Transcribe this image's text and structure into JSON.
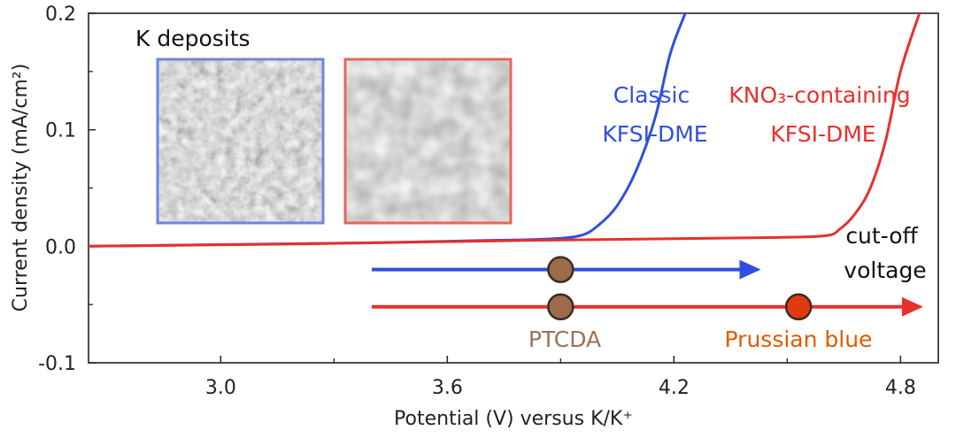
{
  "chart_data": {
    "type": "line",
    "title": "",
    "xlabel": "Potential (V) versus K/K⁺",
    "ylabel": "Current density (mA/cm²)",
    "xlim": [
      2.65,
      4.9
    ],
    "ylim": [
      -0.1,
      0.2
    ],
    "x_ticks": [
      "3.0",
      "3.6",
      "4.2",
      "4.8"
    ],
    "y_ticks": [
      "-0.1",
      "0.0",
      "0.1",
      "0.2"
    ],
    "grid": false,
    "series": [
      {
        "name": "Classic KFSI-DME",
        "label_lines": [
          "Classic",
          "KFSI-DME"
        ],
        "color": "#2f4fe0",
        "x": [
          2.65,
          3.0,
          3.4,
          3.7,
          3.85,
          3.95,
          4.0,
          4.05,
          4.1,
          4.15,
          4.19,
          4.23
        ],
        "y": [
          0.0,
          0.0015,
          0.003,
          0.005,
          0.006,
          0.009,
          0.018,
          0.035,
          0.065,
          0.11,
          0.165,
          0.2
        ]
      },
      {
        "name": "KNO₃-containing KFSI-DME",
        "label_lines": [
          "KNO₃-containing",
          "KFSI-DME"
        ],
        "color": "#e8302a",
        "x": [
          2.65,
          3.2,
          3.8,
          4.2,
          4.45,
          4.6,
          4.64,
          4.68,
          4.72,
          4.76,
          4.8,
          4.85
        ],
        "y": [
          0.0,
          0.002,
          0.005,
          0.0065,
          0.0075,
          0.009,
          0.015,
          0.028,
          0.05,
          0.09,
          0.15,
          0.2
        ]
      }
    ],
    "ranges": [
      {
        "color": "#2f4fe0",
        "x_start": 3.4,
        "x_end": 4.43,
        "y": -0.02
      },
      {
        "color": "#e8302a",
        "x_start": 3.4,
        "x_end": 4.86,
        "y": -0.052
      }
    ],
    "markers": [
      {
        "label": "PTCDA",
        "x": 3.9,
        "y": -0.02,
        "color": "#9b6b4a"
      },
      {
        "label": "PTCDA",
        "x": 3.9,
        "y": -0.052,
        "color": "#9b6b4a"
      },
      {
        "label": "Prussian blue",
        "x": 4.53,
        "y": -0.052,
        "color": "#e03a10"
      }
    ],
    "annotations": {
      "cutoff_lines": [
        "cut-off",
        "voltage"
      ],
      "deposits_title": "K deposits",
      "ptcda": "PTCDA",
      "prussian_blue": "Prussian blue",
      "ptcda_color": "#9b7257",
      "prussian_blue_color": "#e05a00"
    }
  }
}
